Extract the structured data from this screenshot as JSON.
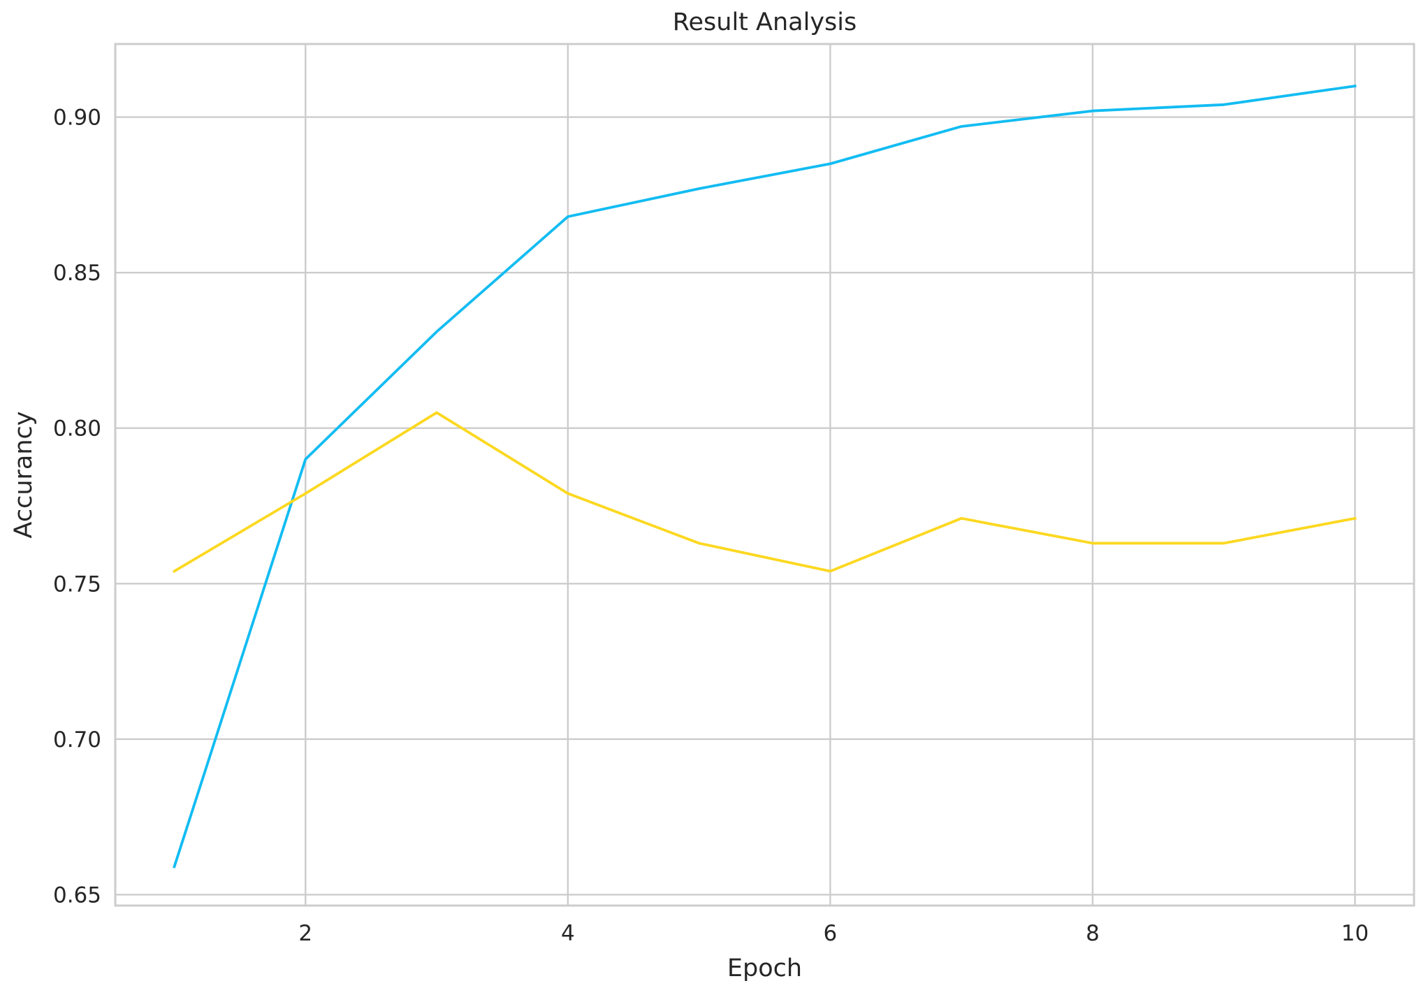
{
  "chart_data": {
    "type": "line",
    "title": "Result Analysis",
    "xlabel": "Epoch",
    "ylabel": "Accurancy",
    "xlim": [
      0.55,
      10.45
    ],
    "ylim": [
      0.6465,
      0.9235
    ],
    "xticks": [
      2,
      4,
      6,
      8,
      10
    ],
    "yticks": [
      0.65,
      0.7,
      0.75,
      0.8,
      0.85,
      0.9
    ],
    "xtick_labels": [
      "2",
      "4",
      "6",
      "8",
      "10"
    ],
    "ytick_labels": [
      "0.65",
      "0.70",
      "0.75",
      "0.80",
      "0.85",
      "0.90"
    ],
    "grid": true,
    "legend": "none",
    "x": [
      1,
      2,
      3,
      4,
      5,
      6,
      7,
      8,
      9,
      10
    ],
    "series": [
      {
        "color": "#12bcf2",
        "values": [
          0.659,
          0.79,
          0.831,
          0.868,
          0.877,
          0.885,
          0.897,
          0.902,
          0.904,
          0.91
        ]
      },
      {
        "color": "#fcd820",
        "values": [
          0.754,
          0.779,
          0.805,
          0.779,
          0.763,
          0.754,
          0.771,
          0.763,
          0.763,
          0.771
        ]
      }
    ]
  }
}
